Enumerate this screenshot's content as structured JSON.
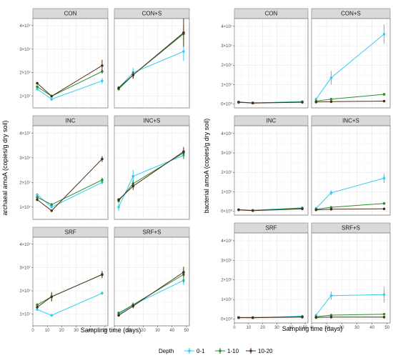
{
  "legend": {
    "title": "Depth",
    "items": [
      {
        "label": "0-1",
        "color": "#33ccee"
      },
      {
        "label": "1-10",
        "color": "#2e8b2e"
      },
      {
        "label": "10-20",
        "color": "#4a2e1a"
      }
    ]
  },
  "chart_data": [
    {
      "type": "line",
      "name": "archaeal",
      "ylabel": "archaeal amoA (copies/g dry soil)",
      "xlabel": "Sampling time (days)",
      "xlim": [
        0,
        52
      ],
      "xticks": [
        0,
        10,
        20,
        30,
        40,
        50
      ],
      "ylim": [
        5000000,
        43000000
      ],
      "yticks": [
        10000000,
        20000000,
        30000000,
        40000000
      ],
      "ytick_labels": [
        "1×10⁷",
        "2×10⁷",
        "3×10⁷",
        "4×10⁷"
      ],
      "x": [
        3,
        13,
        48
      ],
      "panels": [
        {
          "label": "CON",
          "series": [
            {
              "name": "0-1",
              "values": [
                13000000,
                8700000,
                16500000
              ],
              "err": [
                600000,
                700000,
                1200000
              ]
            },
            {
              "name": "1-10",
              "values": [
                14000000,
                10000000,
                20500000
              ],
              "err": [
                600000,
                500000,
                1000000
              ]
            },
            {
              "name": "10-20",
              "values": [
                15500000,
                10000000,
                23000000
              ],
              "err": [
                500000,
                500000,
                2500000
              ]
            }
          ]
        },
        {
          "label": "CON+S",
          "series": [
            {
              "name": "0-1",
              "values": [
                13500000,
                20000000,
                29000000
              ],
              "err": [
                800000,
                2000000,
                4000000
              ]
            },
            {
              "name": "1-10",
              "values": [
                13000000,
                19000000,
                36500000
              ],
              "err": [
                700000,
                1500000,
                3500000
              ]
            },
            {
              "name": "10-20",
              "values": [
                13500000,
                19000000,
                37000000
              ],
              "err": [
                600000,
                1500000,
                6000000
              ]
            }
          ]
        },
        {
          "label": "INC",
          "series": [
            {
              "name": "0-1",
              "values": [
                15000000,
                10000000,
                20000000
              ],
              "err": [
                700000,
                500000,
                700000
              ]
            },
            {
              "name": "1-10",
              "values": [
                14000000,
                11000000,
                21000000
              ],
              "err": [
                500000,
                600000,
                1000000
              ]
            },
            {
              "name": "10-20",
              "values": [
                13000000,
                8500000,
                29500000
              ],
              "err": [
                500000,
                400000,
                1200000
              ]
            }
          ]
        },
        {
          "label": "INC+S",
          "series": [
            {
              "name": "0-1",
              "values": [
                10000000,
                22500000,
                31000000
              ],
              "err": [
                1500000,
                2500000,
                1500000
              ]
            },
            {
              "name": "1-10",
              "values": [
                12500000,
                19500000,
                32000000
              ],
              "err": [
                800000,
                1500000,
                2500000
              ]
            },
            {
              "name": "10-20",
              "values": [
                13000000,
                18500000,
                32500000
              ],
              "err": [
                600000,
                1500000,
                1500000
              ]
            }
          ]
        },
        {
          "label": "SRF",
          "series": [
            {
              "name": "0-1",
              "values": [
                12000000,
                9500000,
                19000000
              ],
              "err": [
                600000,
                500000,
                700000
              ]
            },
            {
              "name": "1-10",
              "values": [
                14000000,
                17500000,
                27000000
              ],
              "err": [
                700000,
                1500000,
                1200000
              ]
            },
            {
              "name": "10-20",
              "values": [
                13000000,
                17500000,
                27000000
              ],
              "err": [
                500000,
                2000000,
                1500000
              ]
            }
          ]
        },
        {
          "label": "SRF+S",
          "series": [
            {
              "name": "0-1",
              "values": [
                10000000,
                14000000,
                24500000
              ],
              "err": [
                600000,
                1000000,
                2000000
              ]
            },
            {
              "name": "1-10",
              "values": [
                10500000,
                14000000,
                27000000
              ],
              "err": [
                600000,
                1000000,
                3500000
              ]
            },
            {
              "name": "10-20",
              "values": [
                9500000,
                13500000,
                28000000
              ],
              "err": [
                500000,
                1000000,
                2000000
              ]
            }
          ]
        }
      ]
    },
    {
      "type": "line",
      "name": "bacterial",
      "ylabel": "bacterial amoA (copies/g dry soil)",
      "xlabel": "Sampling time (days)",
      "xlim": [
        0,
        52
      ],
      "xticks": [
        0,
        10,
        20,
        30,
        40,
        50
      ],
      "ylim": [
        -2000000,
        44000000
      ],
      "yticks": [
        0,
        10000000,
        20000000,
        30000000,
        40000000
      ],
      "ytick_labels": [
        "0×10⁰",
        "1×10⁷",
        "2×10⁷",
        "3×10⁷",
        "4×10⁷"
      ],
      "x": [
        3,
        13,
        48
      ],
      "panels": [
        {
          "label": "CON",
          "series": [
            {
              "name": "0-1",
              "values": [
                1000000,
                500000,
                1300000
              ],
              "err": [
                200000,
                200000,
                200000
              ]
            },
            {
              "name": "1-10",
              "values": [
                800000,
                600000,
                1000000
              ],
              "err": [
                200000,
                200000,
                200000
              ]
            },
            {
              "name": "10-20",
              "values": [
                1000000,
                500000,
                900000
              ],
              "err": [
                200000,
                200000,
                200000
              ]
            }
          ]
        },
        {
          "label": "CON+S",
          "series": [
            {
              "name": "0-1",
              "values": [
                2500000,
                13500000,
                36000000
              ],
              "err": [
                800000,
                3500000,
                5000000
              ]
            },
            {
              "name": "1-10",
              "values": [
                1500000,
                2500000,
                5000000
              ],
              "err": [
                300000,
                400000,
                500000
              ]
            },
            {
              "name": "10-20",
              "values": [
                1000000,
                1200000,
                1500000
              ],
              "err": [
                200000,
                200000,
                200000
              ]
            }
          ]
        },
        {
          "label": "INC",
          "series": [
            {
              "name": "0-1",
              "values": [
                800000,
                500000,
                1800000
              ],
              "err": [
                200000,
                200000,
                300000
              ]
            },
            {
              "name": "1-10",
              "values": [
                800000,
                400000,
                1500000
              ],
              "err": [
                200000,
                200000,
                200000
              ]
            },
            {
              "name": "10-20",
              "values": [
                700000,
                300000,
                1200000
              ],
              "err": [
                200000,
                200000,
                200000
              ]
            }
          ]
        },
        {
          "label": "INC+S",
          "series": [
            {
              "name": "0-1",
              "values": [
                1500000,
                9500000,
                17000000
              ],
              "err": [
                500000,
                1200000,
                2500000
              ]
            },
            {
              "name": "1-10",
              "values": [
                1000000,
                2000000,
                4000000
              ],
              "err": [
                300000,
                300000,
                500000
              ]
            },
            {
              "name": "10-20",
              "values": [
                700000,
                1000000,
                1200000
              ],
              "err": [
                200000,
                200000,
                200000
              ]
            }
          ]
        },
        {
          "label": "SRF",
          "series": [
            {
              "name": "0-1",
              "values": [
                800000,
                600000,
                1500000
              ],
              "err": [
                200000,
                200000,
                300000
              ]
            },
            {
              "name": "1-10",
              "values": [
                800000,
                800000,
                1200000
              ],
              "err": [
                200000,
                200000,
                200000
              ]
            },
            {
              "name": "10-20",
              "values": [
                700000,
                700000,
                1000000
              ],
              "err": [
                200000,
                200000,
                200000
              ]
            }
          ]
        },
        {
          "label": "SRF+S",
          "series": [
            {
              "name": "0-1",
              "values": [
                2000000,
                12000000,
                12500000
              ],
              "err": [
                500000,
                2000000,
                4000000
              ]
            },
            {
              "name": "1-10",
              "values": [
                1200000,
                2000000,
                2500000
              ],
              "err": [
                300000,
                300000,
                400000
              ]
            },
            {
              "name": "10-20",
              "values": [
                800000,
                1000000,
                1000000
              ],
              "err": [
                200000,
                200000,
                200000
              ]
            }
          ]
        }
      ]
    }
  ]
}
